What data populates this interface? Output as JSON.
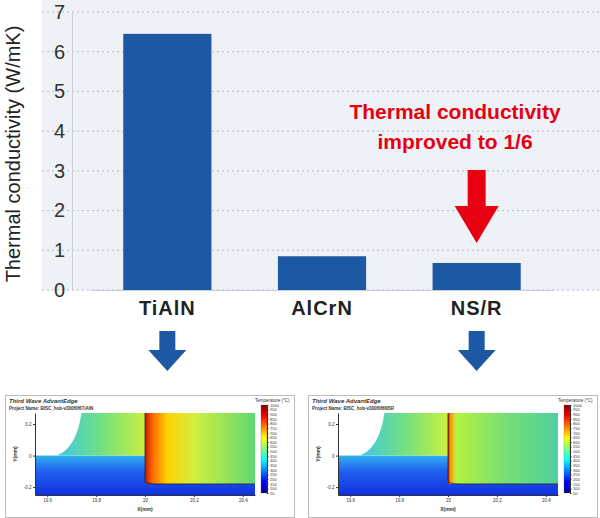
{
  "chart_data": {
    "type": "bar",
    "y_label": "Thermal conductivity (W/mK)",
    "categories": [
      "TiAlN",
      "AlCrN",
      "NS/R"
    ],
    "values": [
      6.45,
      0.85,
      0.68
    ],
    "color": "#1c58a3",
    "ylim": [
      0,
      7
    ],
    "yticks": [
      0,
      1,
      2,
      3,
      4,
      5,
      6,
      7
    ],
    "grid": true,
    "annotation": "Thermal conductivity improved to 1/6"
  },
  "simulations": [
    {
      "software": "Third Wave AdvantEdge",
      "project": "Project Name: BISC_hob-v300f0f6TiAlN",
      "x_label": "X(mm)",
      "y_label": "Y(mm)",
      "xlim": [
        19.55,
        20.45
      ],
      "xticks": [
        19.6,
        19.8,
        20,
        20.2,
        20.4
      ],
      "ylim": [
        -0.25,
        0.27
      ],
      "yticks": [
        -0.2,
        0,
        0.2
      ],
      "colorbar_title": "Temperature (°C)",
      "colorbar_range": [
        50,
        1000
      ],
      "colorbar_ticks": [
        50,
        100,
        150,
        200,
        250,
        300,
        350,
        400,
        450,
        500,
        550,
        600,
        650,
        700,
        750,
        800,
        850,
        900,
        950,
        1000
      ]
    },
    {
      "software": "Third Wave AdvantEdge",
      "project": "Project Name: BISC_hob-v300f0f6NSR",
      "x_label": "X(mm)",
      "y_label": "Y(mm)",
      "xlim": [
        19.55,
        20.45
      ],
      "xticks": [
        19.6,
        19.8,
        20,
        20.2,
        20.4
      ],
      "ylim": [
        -0.25,
        0.27
      ],
      "yticks": [
        -0.2,
        0,
        0.2
      ],
      "colorbar_title": "Temperature (°C)",
      "colorbar_range": [
        50,
        1000
      ],
      "colorbar_ticks": [
        50,
        100,
        150,
        200,
        250,
        300,
        350,
        400,
        450,
        500,
        550,
        600,
        650,
        700,
        750,
        800,
        850,
        900,
        950,
        1000
      ]
    }
  ]
}
